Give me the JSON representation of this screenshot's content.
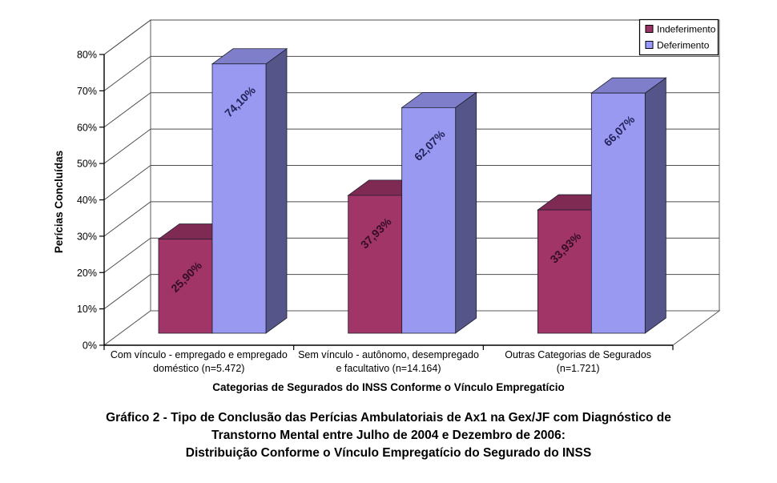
{
  "chart_data": {
    "type": "bar",
    "projection": "3d",
    "title": "Gráfico 2 - Tipo de Conclusão das Perícias Ambulatoriais de Ax1 na Gex/JF com Diagnóstico de Transtorno Mental entre Julho de 2004 e Dezembro de 2006: Distribuição Conforme o Vínculo Empregatício do Segurado do INSS",
    "title_lines": [
      "Gráfico 2 - Tipo de Conclusão das Perícias Ambulatoriais de Ax1 na Gex/JF com Diagnóstico de",
      "Transtorno Mental entre Julho de 2004 e Dezembro de 2006:",
      "Distribuição Conforme o Vínculo Empregatício do Segurado do INSS"
    ],
    "xlabel": "Categorias de Segurados do INSS Conforme o Vínculo Empregatício",
    "ylabel": "Perícias Concluídas",
    "categories": [
      [
        "Com vínculo - empregado e empregado",
        "doméstico (n=5.472)"
      ],
      [
        "Sem vínculo - autônomo, desempregado",
        "e facultativo (n=14.164)"
      ],
      [
        "Outras Categorias de Segurados",
        "(n=1.721)"
      ]
    ],
    "series": [
      {
        "name": "Indeferimento",
        "values": [
          25.9,
          37.93,
          33.93
        ],
        "labels": [
          "25,90%",
          "37,93%",
          "33,93%"
        ],
        "front_color": "#A23568",
        "top_color": "#7F2A53",
        "side_color": "#6B2346",
        "swatch_color": "#993366",
        "label_color": "#330D24"
      },
      {
        "name": "Deferimento",
        "values": [
          74.1,
          62.07,
          66.07
        ],
        "labels": [
          "74,10%",
          "62,07%",
          "66,07%"
        ],
        "front_color": "#9999F2",
        "top_color": "#7E7ECB",
        "side_color": "#55558A",
        "swatch_color": "#9999FF",
        "label_color": "#23235A"
      }
    ],
    "yticks": [
      "0%",
      "10%",
      "20%",
      "30%",
      "40%",
      "50%",
      "60%",
      "70%",
      "80%"
    ],
    "ylim": [
      0,
      80
    ],
    "ytick_step": 10,
    "grid": true,
    "legend_position": "top-right",
    "colors": {
      "axis": "#000000",
      "gridline": "#4D4D4D",
      "wall_edge": "#5A5A5A",
      "background": "#FFFFFF",
      "text": "#000000"
    }
  }
}
